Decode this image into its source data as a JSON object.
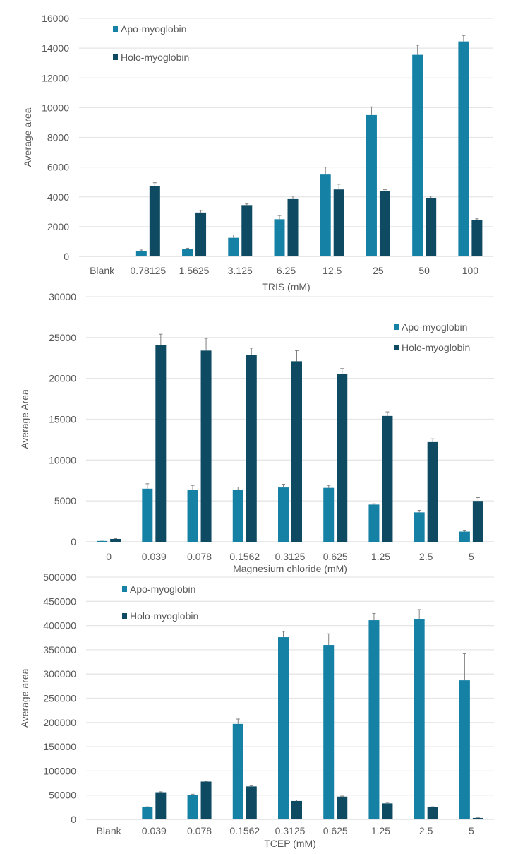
{
  "colors": {
    "apo": "#1581a5",
    "holo": "#0e4a62",
    "grid": "#e6e6e6",
    "text": "#595959",
    "error_bar": "#808080"
  },
  "chart_data": [
    {
      "type": "bar",
      "title": "",
      "xlabel": "TRIS (mM)",
      "ylabel": "Average area",
      "ylim": [
        0,
        16000
      ],
      "yticks": [
        0,
        2000,
        4000,
        6000,
        8000,
        10000,
        12000,
        14000,
        16000
      ],
      "grid": true,
      "legend": "top-left",
      "categories": [
        "Blank",
        "0.78125",
        "1.5625",
        "3.125",
        "6.25",
        "12.5",
        "25",
        "50",
        "100"
      ],
      "series": [
        {
          "name": "Apo-myoglobin",
          "values": [
            0,
            350,
            500,
            1250,
            2500,
            5500,
            9500,
            13550,
            14450
          ],
          "errors": [
            0,
            80,
            50,
            200,
            250,
            500,
            550,
            650,
            400
          ]
        },
        {
          "name": "Holo-myoglobin",
          "values": [
            0,
            4700,
            2950,
            3450,
            3850,
            4500,
            4400,
            3900,
            2450
          ],
          "errors": [
            0,
            250,
            150,
            80,
            200,
            350,
            80,
            150,
            80
          ]
        }
      ]
    },
    {
      "type": "bar",
      "title": "",
      "xlabel": "Magnesium chloride (mM)",
      "ylabel": "Average Area",
      "ylim": [
        0,
        30000
      ],
      "yticks": [
        0,
        5000,
        10000,
        15000,
        20000,
        25000,
        30000
      ],
      "grid": true,
      "legend": "top-right",
      "categories": [
        "0",
        "0.039",
        "0.078",
        "0.1562",
        "0.3125",
        "0.625",
        "1.25",
        "2.5",
        "5"
      ],
      "series": [
        {
          "name": "Apo-myoglobin",
          "values": [
            100,
            6500,
            6350,
            6400,
            6650,
            6600,
            4550,
            3600,
            1250
          ],
          "errors": [
            100,
            600,
            550,
            300,
            400,
            300,
            100,
            250,
            100
          ]
        },
        {
          "name": "Holo-myoglobin",
          "values": [
            350,
            24100,
            23400,
            22900,
            22100,
            20500,
            15400,
            12200,
            5000
          ],
          "errors": [
            50,
            1300,
            1500,
            800,
            1300,
            700,
            500,
            400,
            400
          ]
        }
      ]
    },
    {
      "type": "bar",
      "title": "",
      "xlabel": "TCEP (mM)",
      "ylabel": "Average area",
      "ylim": [
        0,
        500000
      ],
      "yticks": [
        0,
        50000,
        100000,
        150000,
        200000,
        250000,
        300000,
        350000,
        400000,
        450000,
        500000
      ],
      "grid": true,
      "legend": "top-left",
      "categories": [
        "Blank",
        "0.039",
        "0.078",
        "0.1562",
        "0.3125",
        "0.625",
        "1.25",
        "2.5",
        "5"
      ],
      "series": [
        {
          "name": "Apo-myoglobin",
          "values": [
            0,
            25000,
            50000,
            197000,
            376000,
            360000,
            411000,
            413000,
            287000
          ],
          "errors": [
            0,
            1000,
            2000,
            10000,
            12000,
            23000,
            14000,
            20000,
            55000
          ]
        },
        {
          "name": "Holo-myoglobin",
          "values": [
            0,
            56000,
            78000,
            68000,
            38000,
            47000,
            33000,
            25000,
            3000
          ],
          "errors": [
            0,
            1000,
            1000,
            1500,
            2000,
            1000,
            2000,
            1000,
            1000
          ]
        }
      ]
    }
  ]
}
